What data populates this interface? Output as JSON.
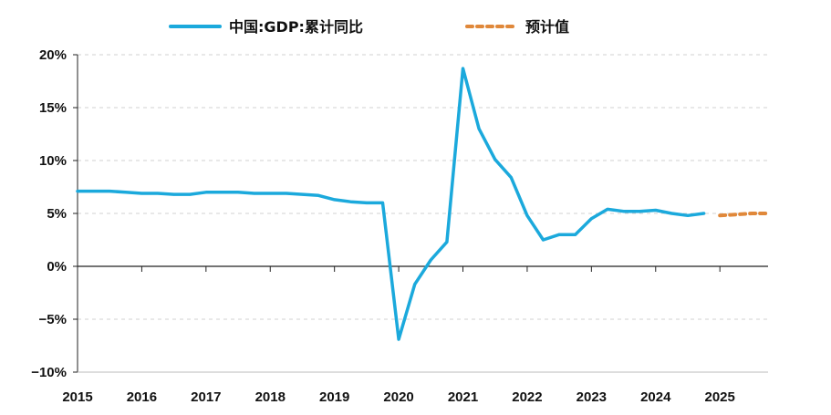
{
  "chart_data": {
    "type": "line",
    "xlim": [
      2015,
      2025.75
    ],
    "ylim": [
      -10,
      20
    ],
    "x_ticks": [
      "2015",
      "2016",
      "2017",
      "2018",
      "2019",
      "2020",
      "2021",
      "2022",
      "2023",
      "2024",
      "2025"
    ],
    "y_ticks": [
      "20%",
      "15%",
      "10%",
      "5%",
      "0%",
      "−5%",
      "−10%"
    ],
    "grid": "horizontal dashed",
    "legend_position": "top",
    "series": [
      {
        "name": "中国:GDP:累计同比",
        "color": "#1ba9dc",
        "style": "solid",
        "x": [
          2015.0,
          2015.25,
          2015.5,
          2015.75,
          2016.0,
          2016.25,
          2016.5,
          2016.75,
          2017.0,
          2017.25,
          2017.5,
          2017.75,
          2018.0,
          2018.25,
          2018.5,
          2018.75,
          2019.0,
          2019.25,
          2019.5,
          2019.75,
          2020.0,
          2020.25,
          2020.5,
          2020.75,
          2021.0,
          2021.25,
          2021.5,
          2021.75,
          2022.0,
          2022.25,
          2022.5,
          2022.75,
          2023.0,
          2023.25,
          2023.5,
          2023.75,
          2024.0,
          2024.25,
          2024.5,
          2024.75
        ],
        "y": [
          7.1,
          7.1,
          7.1,
          7.0,
          6.9,
          6.9,
          6.8,
          6.8,
          7.0,
          7.0,
          7.0,
          6.9,
          6.9,
          6.9,
          6.8,
          6.7,
          6.3,
          6.1,
          6.0,
          6.0,
          -6.9,
          -1.7,
          0.6,
          2.3,
          18.7,
          13.0,
          10.1,
          8.4,
          4.8,
          2.5,
          3.0,
          3.0,
          4.5,
          5.4,
          5.2,
          5.2,
          5.3,
          5.0,
          4.8,
          5.0
        ]
      },
      {
        "name": "预计值",
        "color": "#e0883a",
        "style": "dashed",
        "x": [
          2025.0,
          2025.25,
          2025.5,
          2025.75
        ],
        "y": [
          4.8,
          4.9,
          5.0,
          5.0
        ]
      }
    ]
  }
}
